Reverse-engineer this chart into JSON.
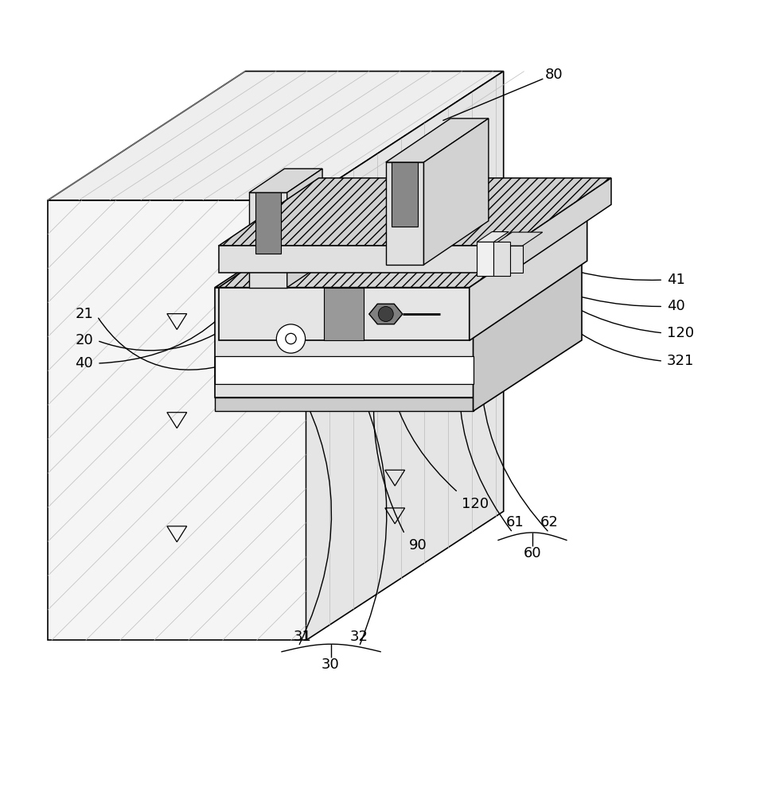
{
  "bg_color": "#ffffff",
  "line_color": "#000000",
  "figsize": [
    9.6,
    10.0
  ],
  "dpi": 100,
  "label_fs": 13,
  "lw_leader": 1.0,
  "B_l": 0.06,
  "B_r": 0.4,
  "B_b": 0.18,
  "B_t": 0.76,
  "B_idx": 0.26,
  "B_idy": 0.17
}
